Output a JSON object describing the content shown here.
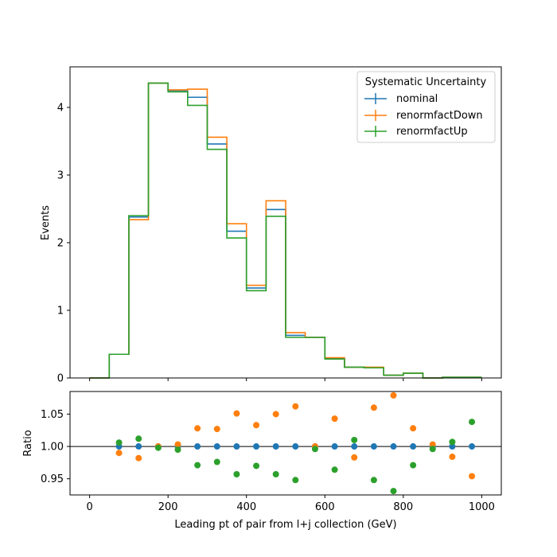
{
  "chart_data": [
    {
      "type": "line",
      "subtype": "step-histogram",
      "ylabel": "Events",
      "xlim": [
        -50,
        1050
      ],
      "ylim": [
        0,
        4.6
      ],
      "yticks": [
        0,
        1,
        2,
        3,
        4
      ],
      "bin_edges": [
        0,
        50,
        100,
        150,
        200,
        250,
        300,
        350,
        400,
        450,
        500,
        550,
        600,
        650,
        700,
        750,
        800,
        850,
        900,
        950,
        1000
      ],
      "legend": {
        "title": "Systematic Uncertainty",
        "placement": "top-right"
      },
      "series": [
        {
          "name": "nominal",
          "color": "#1f77b4",
          "values": [
            0.0,
            0.35,
            2.38,
            4.36,
            4.25,
            4.15,
            3.46,
            2.17,
            1.33,
            2.49,
            0.63,
            0.6,
            0.29,
            0.16,
            0.15,
            0.04,
            0.07,
            0.0,
            0.01,
            0.01
          ]
        },
        {
          "name": "renormfactDown",
          "color": "#ff7f0e",
          "values": [
            0.0,
            0.35,
            2.34,
            4.36,
            4.26,
            4.27,
            3.56,
            2.28,
            1.37,
            2.62,
            0.67,
            0.6,
            0.3,
            0.16,
            0.16,
            0.04,
            0.07,
            0.0,
            0.01,
            0.01
          ]
        },
        {
          "name": "renormfactUp",
          "color": "#2ca02c",
          "values": [
            0.0,
            0.35,
            2.4,
            4.36,
            4.23,
            4.03,
            3.38,
            2.07,
            1.29,
            2.39,
            0.6,
            0.6,
            0.28,
            0.16,
            0.15,
            0.04,
            0.07,
            0.0,
            0.01,
            0.01
          ]
        }
      ]
    },
    {
      "type": "scatter",
      "xlabel": "Leading pt of pair from l+j collection (GeV)",
      "ylabel": "Ratio",
      "xlim": [
        -50,
        1050
      ],
      "ylim": [
        0.925,
        1.085
      ],
      "xticks": [
        0,
        200,
        400,
        600,
        800,
        1000
      ],
      "yticks": [
        0.95,
        1.0,
        1.05
      ],
      "ytick_labels": [
        "0.95",
        "1.00",
        "1.05"
      ],
      "reference_line": 1.0,
      "x": [
        75,
        125,
        175,
        225,
        275,
        325,
        375,
        425,
        475,
        525,
        575,
        625,
        675,
        725,
        775,
        825,
        875,
        925,
        975
      ],
      "series": [
        {
          "name": "nominal",
          "color": "#1f77b4",
          "values": [
            1.0,
            1.0,
            1.0,
            1.0,
            1.0,
            1.0,
            1.0,
            1.0,
            1.0,
            1.0,
            1.0,
            1.0,
            1.0,
            1.0,
            1.0,
            1.0,
            1.0,
            1.0,
            1.0
          ]
        },
        {
          "name": "renormfactDown",
          "color": "#ff7f0e",
          "values": [
            0.99,
            0.982,
            1.0,
            1.003,
            1.028,
            1.027,
            1.051,
            1.033,
            1.05,
            1.062,
            1.0,
            1.043,
            0.983,
            1.06,
            1.079,
            1.028,
            1.003,
            0.984,
            0.954
          ]
        },
        {
          "name": "renormfactUp",
          "color": "#2ca02c",
          "values": [
            1.006,
            1.012,
            0.998,
            0.995,
            0.971,
            0.976,
            0.957,
            0.97,
            0.957,
            0.948,
            0.996,
            0.964,
            1.01,
            0.948,
            0.931,
            0.971,
            0.996,
            1.007,
            1.038
          ]
        }
      ]
    }
  ]
}
